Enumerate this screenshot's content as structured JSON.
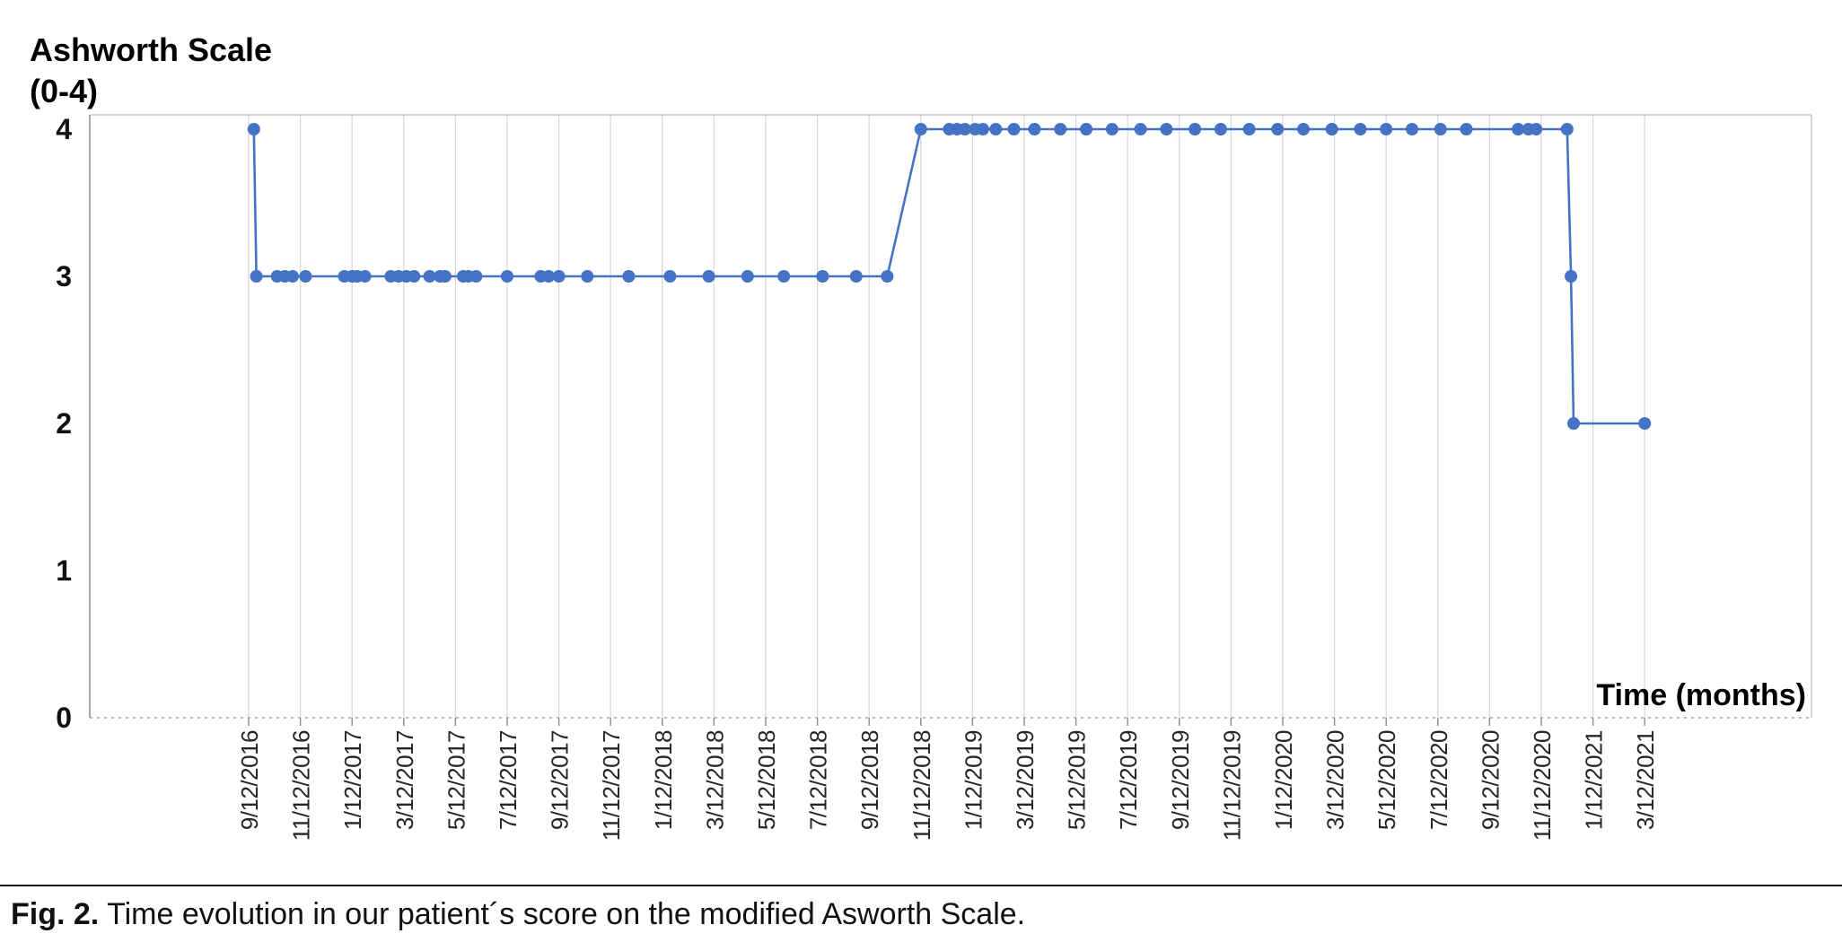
{
  "figure": {
    "y_axis_title_line1": "Ashworth Scale",
    "y_axis_title_line2": "(0-4)",
    "x_axis_title": "Time (months)",
    "caption_label": "Fig. 2.",
    "caption_text": "Time evolution in our patient´s score on the modified Asworth Scale."
  },
  "chart_data": {
    "type": "line",
    "title": "Ashworth Scale (0-4)",
    "xlabel": "Time (months)",
    "ylabel": "Ashworth Scale (0-4)",
    "legend": "none",
    "grid": "vertical-only",
    "line_color": "#4472C4",
    "marker": "circle",
    "ylim": [
      0,
      4
    ],
    "y_ticks": [
      "0",
      "1",
      "2",
      "3",
      "4"
    ],
    "months_per_tick": 2,
    "x_tick_labels": [
      "9/12/2016",
      "11/12/2016",
      "1/12/2017",
      "3/12/2017",
      "5/12/2017",
      "7/12/2017",
      "9/12/2017",
      "11/12/2017",
      "1/12/2018",
      "3/12/2018",
      "5/12/2018",
      "7/12/2018",
      "9/12/2018",
      "11/12/2018",
      "1/12/2019",
      "3/12/2019",
      "5/12/2019",
      "7/12/2019",
      "9/12/2019",
      "11/12/2019",
      "1/12/2020",
      "3/12/2020",
      "5/12/2020",
      "7/12/2020",
      "9/12/2020",
      "11/12/2020",
      "1/12/2021",
      "3/12/2021"
    ],
    "points_month_value": [
      [
        0.2,
        4
      ],
      [
        0.3,
        3
      ],
      [
        1.1,
        3
      ],
      [
        1.4,
        3
      ],
      [
        1.7,
        3
      ],
      [
        2.2,
        3
      ],
      [
        3.7,
        3
      ],
      [
        4.0,
        3
      ],
      [
        4.2,
        3
      ],
      [
        4.5,
        3
      ],
      [
        5.5,
        3
      ],
      [
        5.8,
        3
      ],
      [
        6.1,
        3
      ],
      [
        6.4,
        3
      ],
      [
        7.0,
        3
      ],
      [
        7.4,
        3
      ],
      [
        7.6,
        3
      ],
      [
        8.3,
        3
      ],
      [
        8.5,
        3
      ],
      [
        8.8,
        3
      ],
      [
        10.0,
        3
      ],
      [
        11.3,
        3
      ],
      [
        11.6,
        3
      ],
      [
        12.0,
        3
      ],
      [
        13.1,
        3
      ],
      [
        14.7,
        3
      ],
      [
        16.3,
        3
      ],
      [
        17.8,
        3
      ],
      [
        19.3,
        3
      ],
      [
        20.7,
        3
      ],
      [
        22.2,
        3
      ],
      [
        23.5,
        3
      ],
      [
        24.7,
        3
      ],
      [
        26.0,
        4
      ],
      [
        27.1,
        4
      ],
      [
        27.4,
        4
      ],
      [
        27.7,
        4
      ],
      [
        28.1,
        4
      ],
      [
        28.4,
        4
      ],
      [
        28.9,
        4
      ],
      [
        29.6,
        4
      ],
      [
        30.4,
        4
      ],
      [
        31.4,
        4
      ],
      [
        32.4,
        4
      ],
      [
        33.4,
        4
      ],
      [
        34.5,
        4
      ],
      [
        35.5,
        4
      ],
      [
        36.6,
        4
      ],
      [
        37.6,
        4
      ],
      [
        38.7,
        4
      ],
      [
        39.8,
        4
      ],
      [
        40.8,
        4
      ],
      [
        41.9,
        4
      ],
      [
        43.0,
        4
      ],
      [
        44.0,
        4
      ],
      [
        45.0,
        4
      ],
      [
        46.1,
        4
      ],
      [
        47.1,
        4
      ],
      [
        49.1,
        4
      ],
      [
        49.5,
        4
      ],
      [
        49.8,
        4
      ],
      [
        51.0,
        4
      ],
      [
        51.15,
        3
      ],
      [
        51.25,
        2
      ],
      [
        54.0,
        2
      ]
    ],
    "description": "Modified Ashworth Scale score over time: 4 on 9/12/2016, drops immediately to 3 and remains 3 until ~Oct 2018, rises to 4 from ~Nov 2018 through ~Dec 2020, then drops briefly to 3 and down to 2, remaining 2 through 3/12/2021."
  }
}
